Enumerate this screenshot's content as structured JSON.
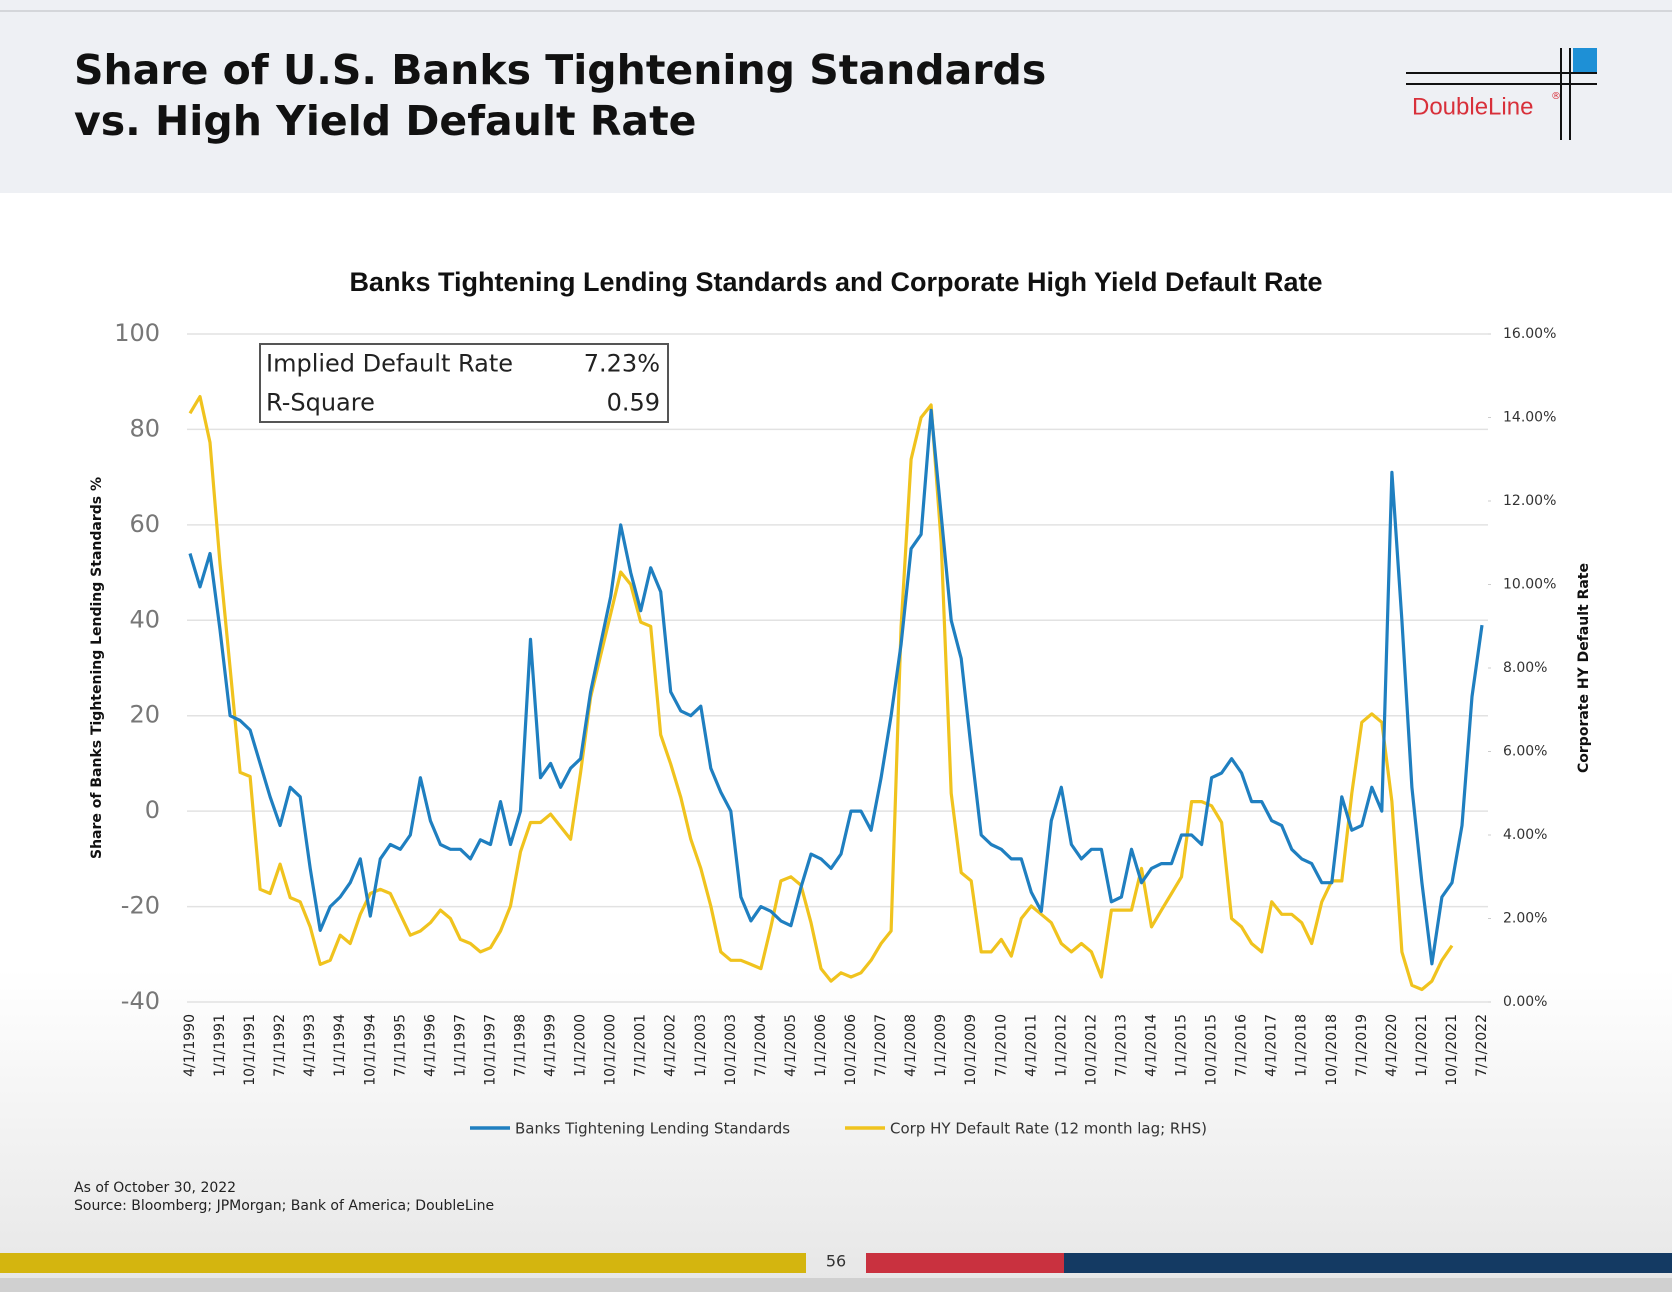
{
  "header": {
    "title_lines": [
      "Share of U.S. Banks Tightening Standards",
      "vs. High Yield Default Rate"
    ],
    "logo": "DoubleLine",
    "logo_mark": "®"
  },
  "chart_data": {
    "type": "line",
    "title": "Banks Tightening Lending Standards and Corporate High Yield Default Rate",
    "ylabel": "Share of Banks Tightening Lending Standards %",
    "y2label": "Corporate HY Default Rate",
    "categories": [
      "4/1/1990",
      null,
      null,
      "1/1/1991",
      null,
      null,
      "10/1/1991",
      null,
      null,
      "7/1/1992",
      null,
      null,
      "4/1/1993",
      null,
      null,
      "1/1/1994",
      null,
      null,
      "10/1/1994",
      null,
      null,
      "7/1/1995",
      null,
      null,
      "4/1/1996",
      null,
      null,
      "1/1/1997",
      null,
      null,
      "10/1/1997",
      null,
      null,
      "7/1/1998",
      null,
      null,
      "4/1/1999",
      null,
      null,
      "1/1/2000",
      null,
      null,
      "10/1/2000",
      null,
      null,
      "7/1/2001",
      null,
      null,
      "4/1/2002",
      null,
      null,
      "1/1/2003",
      null,
      null,
      "10/1/2003",
      null,
      null,
      "7/1/2004",
      null,
      null,
      "4/1/2005",
      null,
      null,
      "1/1/2006",
      null,
      null,
      "10/1/2006",
      null,
      null,
      "7/1/2007",
      null,
      null,
      "4/1/2008",
      null,
      null,
      "1/1/2009",
      null,
      null,
      "10/1/2009",
      null,
      null,
      "7/1/2010",
      null,
      null,
      "4/1/2011",
      null,
      null,
      "1/1/2012",
      null,
      null,
      "10/1/2012",
      null,
      null,
      "7/1/2013",
      null,
      null,
      "4/1/2014",
      null,
      null,
      "1/1/2015",
      null,
      null,
      "10/1/2015",
      null,
      null,
      "7/1/2016",
      null,
      null,
      "4/1/2017",
      null,
      null,
      "1/1/2018",
      null,
      null,
      "10/1/2018",
      null,
      null,
      "7/1/2019",
      null,
      null,
      "4/1/2020",
      null,
      null,
      "1/1/2021",
      null,
      null,
      "10/1/2021",
      null,
      null,
      "7/1/2022"
    ],
    "series": [
      {
        "name": "Banks Tightening Lending Standards",
        "color": "#1f7fc0",
        "values": [
          54,
          47,
          54,
          38,
          20,
          19,
          17,
          10,
          3,
          -3,
          5,
          3,
          -12,
          -25,
          -20,
          -18,
          -15,
          -10,
          -22,
          -10,
          -7,
          -8,
          -5,
          7,
          -2,
          -7,
          -8,
          -8,
          -10,
          -6,
          -7,
          2,
          -7,
          0,
          36,
          7,
          10,
          5,
          9,
          11,
          25,
          35,
          45,
          60,
          50,
          42,
          51,
          46,
          25,
          21,
          20,
          22,
          9,
          4,
          0,
          -18,
          -23,
          -20,
          -21,
          -23,
          -24,
          -16,
          -9,
          -10,
          -12,
          -9,
          0,
          0,
          -4,
          7,
          20,
          35,
          55,
          58,
          84,
          62,
          40,
          32,
          13,
          -5,
          -7,
          -8,
          -10,
          -10,
          -17,
          -21,
          -2,
          5,
          -7,
          -10,
          -8,
          -8,
          -19,
          -18,
          -8,
          -15,
          -12,
          -11,
          -11,
          -5,
          -5,
          -7,
          7,
          8,
          11,
          8,
          2,
          2,
          -2,
          -3,
          -8,
          -10,
          -11,
          -15,
          -15,
          3,
          -4,
          -3,
          5,
          0,
          71,
          40,
          5,
          -15,
          -32,
          -18,
          -15,
          -3,
          24,
          39
        ]
      },
      {
        "name": "Corp HY Default Rate (12 month lag; RHS)",
        "color": "#f0c31e",
        "axis": "y2",
        "values": [
          14.1,
          14.5,
          13.4,
          10.5,
          8.0,
          5.5,
          5.4,
          2.7,
          2.6,
          3.3,
          2.5,
          2.4,
          1.8,
          0.9,
          1.0,
          1.6,
          1.4,
          2.1,
          2.6,
          2.7,
          2.6,
          2.1,
          1.6,
          1.7,
          1.9,
          2.2,
          2.0,
          1.5,
          1.4,
          1.2,
          1.3,
          1.7,
          2.3,
          3.6,
          4.3,
          4.3,
          4.5,
          4.2,
          3.9,
          5.5,
          7.3,
          8.3,
          9.3,
          10.3,
          10.0,
          9.1,
          9.0,
          6.4,
          5.7,
          4.9,
          3.9,
          3.2,
          2.3,
          1.2,
          1.0,
          1.0,
          0.9,
          0.8,
          1.8,
          2.9,
          3.0,
          2.8,
          1.9,
          0.8,
          0.5,
          0.7,
          0.6,
          0.7,
          1.0,
          1.4,
          1.7,
          9.0,
          13.0,
          14.0,
          14.3,
          11.0,
          5.0,
          3.1,
          2.9,
          1.2,
          1.2,
          1.5,
          1.1,
          2.0,
          2.3,
          2.1,
          1.9,
          1.4,
          1.2,
          1.4,
          1.2,
          0.6,
          2.2,
          2.2,
          2.2,
          3.2,
          1.8,
          2.2,
          2.6,
          3.0,
          4.8,
          4.8,
          4.7,
          4.3,
          2.0,
          1.8,
          1.4,
          1.2,
          2.4,
          2.1,
          2.1,
          1.9,
          1.4,
          2.4,
          2.9,
          2.9,
          5.0,
          6.7,
          6.9,
          6.7,
          4.8,
          1.2,
          0.4,
          0.3,
          0.5,
          1.0,
          1.35,
          null,
          null,
          null
        ]
      }
    ],
    "ylim": [
      -40,
      100
    ],
    "yticks": [
      -40,
      -20,
      0,
      20,
      40,
      60,
      80,
      100
    ],
    "y2lim": [
      0,
      16
    ],
    "y2ticks": [
      {
        "value": 0,
        "label": "0.00%"
      },
      {
        "value": 2,
        "label": "2.00%"
      },
      {
        "value": 4,
        "label": "4.00%"
      },
      {
        "value": 6,
        "label": "6.00%"
      },
      {
        "value": 8,
        "label": "8.00%"
      },
      {
        "value": 10,
        "label": "10.00%"
      },
      {
        "value": 12,
        "label": "12.00%"
      },
      {
        "value": 14,
        "label": "14.00%"
      },
      {
        "value": 16,
        "label": "16.00%"
      }
    ],
    "grid": true,
    "legend": "bottom",
    "annotation_box": [
      [
        "Implied Default Rate",
        "7.23%"
      ],
      [
        "R-Square",
        "0.59"
      ]
    ]
  },
  "footer": {
    "as_of": "As of October 30, 2022",
    "source": "Source: Bloomberg; JPMorgan; Bank of America; DoubleLine",
    "page": "56"
  }
}
